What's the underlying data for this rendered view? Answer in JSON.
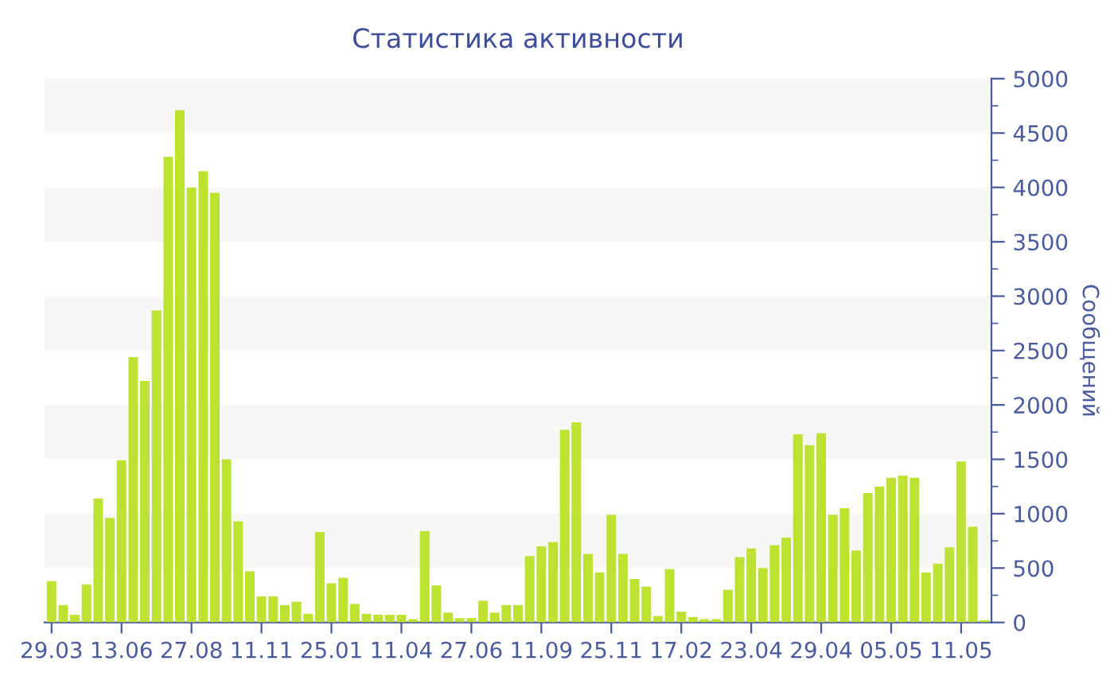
{
  "chart_data": {
    "type": "bar",
    "title": "Статистика активности",
    "ylabel": "Сообщений",
    "categories": [
      "29.03",
      null,
      null,
      null,
      null,
      null,
      "13.06",
      null,
      null,
      null,
      null,
      null,
      "27.08",
      null,
      null,
      null,
      null,
      null,
      "11.11",
      null,
      null,
      null,
      null,
      null,
      "25.01",
      null,
      null,
      null,
      null,
      null,
      "11.04",
      null,
      null,
      null,
      null,
      null,
      "27.06",
      null,
      null,
      null,
      null,
      null,
      "11.09",
      null,
      null,
      null,
      null,
      null,
      "25.11",
      null,
      null,
      null,
      null,
      null,
      "17.02",
      null,
      null,
      null,
      null,
      null,
      "23.04",
      null,
      null,
      null,
      null,
      null,
      "29.04",
      null,
      null,
      null,
      null,
      null,
      "05.05",
      null,
      null,
      null,
      null,
      null,
      "11.05",
      null,
      null
    ],
    "values": [
      380,
      160,
      70,
      350,
      1140,
      960,
      1490,
      2440,
      2220,
      2870,
      4280,
      4710,
      4000,
      4150,
      3950,
      1500,
      930,
      470,
      240,
      240,
      160,
      190,
      80,
      830,
      360,
      410,
      170,
      80,
      70,
      70,
      70,
      30,
      840,
      340,
      90,
      40,
      40,
      200,
      90,
      160,
      160,
      610,
      700,
      740,
      1770,
      1840,
      630,
      460,
      990,
      630,
      400,
      330,
      60,
      490,
      100,
      50,
      30,
      30,
      300,
      600,
      680,
      500,
      710,
      780,
      1730,
      1630,
      1740,
      990,
      1050,
      660,
      1190,
      1250,
      1330,
      1350,
      1330,
      460,
      540,
      690,
      1480,
      880,
      20
    ],
    "color": "#bde232",
    "ylim": [
      0,
      5000
    ],
    "yticks": [
      0,
      500,
      1000,
      1500,
      2000,
      2500,
      3000,
      3500,
      4000,
      4500,
      5000
    ],
    "grid": false,
    "bands": [
      {
        "axis": "y",
        "from": 500,
        "to": 1000,
        "color": "#f7f7f7"
      },
      {
        "axis": "y",
        "from": 1500,
        "to": 2000,
        "color": "#f7f7f7"
      },
      {
        "axis": "y",
        "from": 2500,
        "to": 3000,
        "color": "#f7f7f7"
      },
      {
        "axis": "y",
        "from": 3500,
        "to": 4000,
        "color": "#f7f7f7"
      },
      {
        "axis": "y",
        "from": 4500,
        "to": 5000,
        "color": "#f7f7f7"
      }
    ]
  }
}
